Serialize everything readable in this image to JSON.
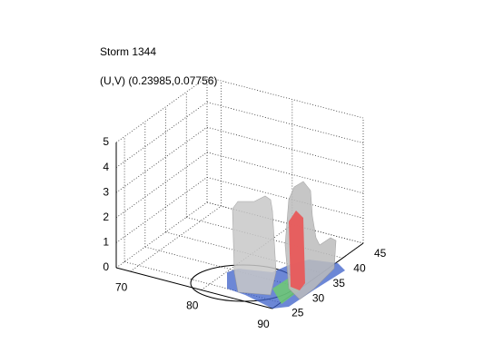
{
  "chart_data": {
    "type": "isosurface3d",
    "title": "Storm 1344",
    "subtitle": "(U,V) (0.23985,0.07756)",
    "xlim": [
      68,
      90
    ],
    "xticks": [
      70,
      80,
      90
    ],
    "ylim": [
      23,
      45
    ],
    "yticks": [
      25,
      30,
      35,
      40,
      45
    ],
    "zlim": [
      0,
      5
    ],
    "zticks": [
      0,
      1,
      2,
      3,
      4,
      5
    ],
    "grid": true
  }
}
